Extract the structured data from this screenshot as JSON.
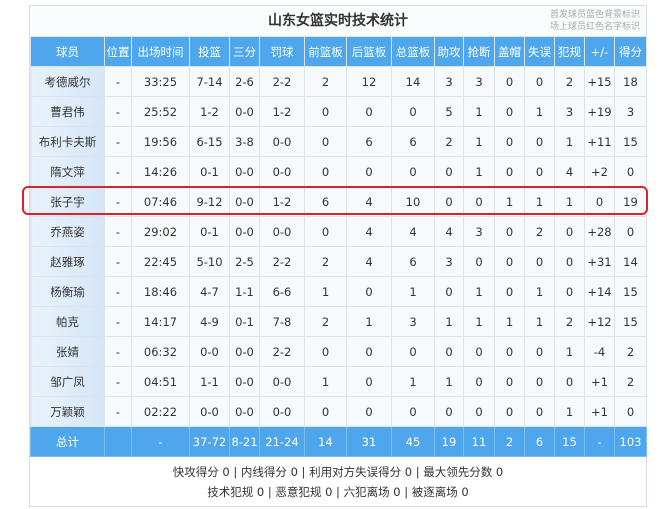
{
  "title": "山东女篮实时技术统计",
  "legend": [
    "首发球员蓝色背景标识",
    "场上球员红色名字标识"
  ],
  "columns": [
    "球员",
    "位置",
    "出场时间",
    "投篮",
    "三分",
    "罚球",
    "前篮板",
    "后篮板",
    "总篮板",
    "助攻",
    "抢断",
    "盖帽",
    "失误",
    "犯规",
    "+/-",
    "得分"
  ],
  "rows": [
    [
      "考德威尔",
      "-",
      "33:25",
      "7-14",
      "2-6",
      "2-2",
      "2",
      "12",
      "14",
      "3",
      "3",
      "0",
      "0",
      "2",
      "+15",
      "18"
    ],
    [
      "曹君伟",
      "-",
      "25:52",
      "1-2",
      "0-0",
      "1-2",
      "0",
      "0",
      "0",
      "5",
      "1",
      "0",
      "1",
      "3",
      "+19",
      "3"
    ],
    [
      "布利卡夫斯",
      "-",
      "19:56",
      "6-15",
      "3-8",
      "0-0",
      "0",
      "6",
      "6",
      "2",
      "1",
      "0",
      "0",
      "1",
      "+11",
      "15"
    ],
    [
      "隋文萍",
      "-",
      "14:26",
      "0-1",
      "0-0",
      "0-0",
      "0",
      "0",
      "0",
      "0",
      "1",
      "0",
      "0",
      "4",
      "+2",
      "0"
    ],
    [
      "张子宇",
      "-",
      "07:46",
      "9-12",
      "0-0",
      "1-2",
      "6",
      "4",
      "10",
      "0",
      "0",
      "1",
      "1",
      "1",
      "0",
      "19"
    ],
    [
      "乔燕姿",
      "-",
      "29:02",
      "0-1",
      "0-0",
      "0-0",
      "0",
      "4",
      "4",
      "4",
      "3",
      "0",
      "2",
      "0",
      "+28",
      "0"
    ],
    [
      "赵雅琢",
      "-",
      "22:45",
      "5-10",
      "2-5",
      "2-2",
      "2",
      "4",
      "6",
      "3",
      "0",
      "0",
      "0",
      "0",
      "+31",
      "14"
    ],
    [
      "杨衡瑜",
      "-",
      "18:46",
      "4-7",
      "1-1",
      "6-6",
      "1",
      "0",
      "1",
      "0",
      "1",
      "0",
      "1",
      "0",
      "+14",
      "15"
    ],
    [
      "帕克",
      "-",
      "14:17",
      "4-9",
      "0-1",
      "7-8",
      "2",
      "1",
      "3",
      "1",
      "1",
      "1",
      "1",
      "2",
      "+12",
      "15"
    ],
    [
      "张婧",
      "-",
      "06:32",
      "0-0",
      "0-0",
      "2-2",
      "0",
      "0",
      "0",
      "0",
      "0",
      "0",
      "0",
      "1",
      "-4",
      "2"
    ],
    [
      "邹广凤",
      "-",
      "04:51",
      "1-1",
      "0-0",
      "0-0",
      "1",
      "0",
      "1",
      "1",
      "0",
      "0",
      "0",
      "0",
      "+1",
      "2"
    ],
    [
      "万颖颖",
      "-",
      "02:22",
      "0-0",
      "0-0",
      "0-0",
      "0",
      "0",
      "0",
      "0",
      "0",
      "0",
      "0",
      "1",
      "+1",
      "0"
    ]
  ],
  "total": [
    "总计",
    "",
    "-",
    "37-72",
    "8-21",
    "21-24",
    "14",
    "31",
    "45",
    "19",
    "11",
    "2",
    "6",
    "15",
    "-",
    "103"
  ],
  "footer": [
    "快攻得分 0 | 内线得分 0 | 利用对方失误得分 0 | 最大领先分数 0",
    "技术犯规 0 | 恶意犯规 0 | 六犯离场 0 | 被逐离场 0"
  ],
  "highlighted_player": "张子宇",
  "colors": {
    "header": "#4ea6ec",
    "highlight": "#d9232d"
  }
}
